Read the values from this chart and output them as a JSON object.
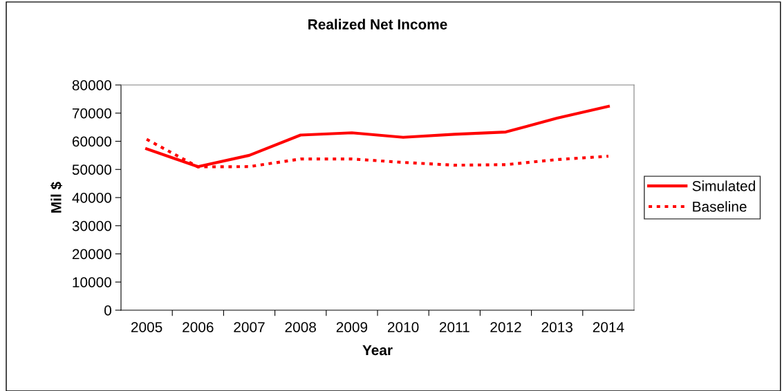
{
  "chart_data": {
    "type": "line",
    "title": "Realized Net Income",
    "xlabel": "Year",
    "ylabel": "Mil $",
    "categories": [
      "2005",
      "2006",
      "2007",
      "2008",
      "2009",
      "2010",
      "2011",
      "2012",
      "2013",
      "2014"
    ],
    "series": [
      {
        "name": "Simulated",
        "color": "#ff0000",
        "line_style": "solid",
        "values": [
          57300,
          51000,
          55000,
          62200,
          63000,
          61400,
          62500,
          63300,
          68200,
          72400
        ]
      },
      {
        "name": "Baseline",
        "color": "#ff0000",
        "line_style": "dashed",
        "values": [
          60700,
          50900,
          51000,
          53700,
          53700,
          52500,
          51500,
          51700,
          53500,
          54700
        ]
      }
    ],
    "ylim": [
      0,
      80000
    ],
    "yticks": [
      0,
      10000,
      20000,
      30000,
      40000,
      50000,
      60000,
      70000,
      80000
    ],
    "grid": false,
    "legend": "right",
    "marker": "none"
  }
}
